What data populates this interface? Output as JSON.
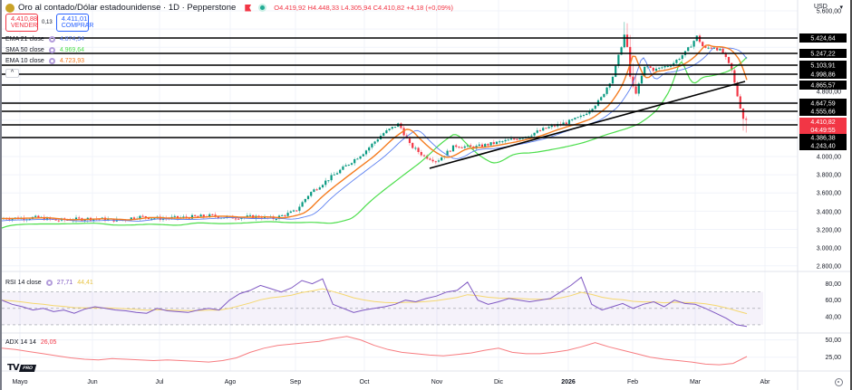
{
  "header": {
    "symbol_title": "Oro al contado/Dólar estadounidense · 1D · Pepperstone",
    "ohlc": {
      "open_label": "O",
      "open": "4.419,92",
      "high_label": "H",
      "high": "4.448,33",
      "low_label": "L",
      "low": "4.305,94",
      "close_label": "C",
      "close": "4.410,82",
      "change": "+4,18 (+0,09%)"
    }
  },
  "trade": {
    "sell_price": "4.410,88",
    "sell_label": "VENDER",
    "spread": "0,13",
    "buy_price": "4.411,01",
    "buy_label": "COMPRAR"
  },
  "indicators": [
    {
      "label": "EMA 21 close",
      "value": "4.874,34",
      "color": "#5b7ff0"
    },
    {
      "label": "SMA 50 close",
      "value": "4.969,64",
      "color": "#4cde4c"
    },
    {
      "label": "EMA 10 close",
      "value": "4.723,93",
      "color": "#f57c1f"
    }
  ],
  "collapse_glyph": "^",
  "currency": {
    "label": "USD",
    "glyph": "▾"
  },
  "price_axis": {
    "ticks": [
      "5.600,00",
      "4.800,00",
      "4.000,00",
      "3.800,00",
      "3.600,00",
      "3.400,00",
      "3.200,00",
      "3.000,00",
      "2.800,00"
    ],
    "level_labels": [
      "5.424,64",
      "5.247,22",
      "5.103,91",
      "4.998,86",
      "4.865,57",
      "4.647,59",
      "4.555,66",
      "4.386,38",
      "4.243,40"
    ],
    "current_price": "4.410,82",
    "countdown": "04:49:55"
  },
  "rsi": {
    "label": "RSI 14 close",
    "value": "27,71",
    "ma_value": "44,41",
    "ticks": [
      "80,00",
      "60,00",
      "40,00"
    ]
  },
  "adx": {
    "label": "ADX 14 14",
    "value": "26,05",
    "ticks": [
      "50,00",
      "25,00"
    ]
  },
  "time_axis": [
    "Mayo",
    "Jun",
    "Jul",
    "Ago",
    "Sep",
    "Oct",
    "Nov",
    "Dic",
    "2026",
    "Feb",
    "Mar",
    "Abr"
  ],
  "logo": {
    "tv": "TV",
    "pro": "PRO"
  },
  "colors": {
    "up": "#089981",
    "down": "#f23645",
    "ema21": "#5b7ff0",
    "sma50": "#4cde4c",
    "ema10": "#f57c1f",
    "rsi": "#7e57c2",
    "rsi_ma": "#f5d76e",
    "adx": "#f77c80",
    "level": "#000000"
  },
  "chart_data": [
    {
      "type": "candlestick",
      "title": "Oro al contado/Dólar estadounidense · 1D · Pepperstone",
      "ylim": [
        2700,
        5650
      ],
      "x_ticks": [
        "Mayo",
        "Jun",
        "Jul",
        "Ago",
        "Sep",
        "Oct",
        "Nov",
        "Dic",
        "2026",
        "Feb",
        "Mar",
        "Abr"
      ],
      "approx_close_path": [
        {
          "x": "Mayo",
          "y": 3300
        },
        {
          "x": "Jun",
          "y": 3320
        },
        {
          "x": "Jul",
          "y": 3340
        },
        {
          "x": "Ago",
          "y": 3350
        },
        {
          "x": "Sep",
          "y": 3500
        },
        {
          "x": "Oct",
          "y": 3950
        },
        {
          "x": "Oct-mid",
          "y": 4350
        },
        {
          "x": "Nov",
          "y": 4000
        },
        {
          "x": "Dic",
          "y": 4200
        },
        {
          "x": "2026",
          "y": 4400
        },
        {
          "x": "Jan-end",
          "y": 5400
        },
        {
          "x": "Feb",
          "y": 4950
        },
        {
          "x": "Mar",
          "y": 5250
        },
        {
          "x": "Mar-mid",
          "y": 5100
        },
        {
          "x": "last",
          "y": 4410.82
        }
      ],
      "horizontal_levels": [
        5424.64,
        5247.22,
        5103.91,
        4998.86,
        4865.57,
        4647.59,
        4555.66,
        4386.38,
        4243.4
      ],
      "trendlines": [
        {
          "from": {
            "x": "Nov",
            "y": 3880
          },
          "to": {
            "x": "Mar-mid",
            "y": 4890
          }
        }
      ],
      "series": [
        {
          "name": "EMA 21 close",
          "last": 4874.34
        },
        {
          "name": "SMA 50 close",
          "last": 4969.64
        },
        {
          "name": "EMA 10 close",
          "last": 4723.93
        }
      ],
      "last_price": 4410.82
    },
    {
      "type": "line",
      "title": "RSI 14 close",
      "ylim": [
        20,
        95
      ],
      "bands": [
        30,
        50,
        70
      ],
      "series": [
        {
          "name": "RSI",
          "last": 27.71,
          "values": [
            60,
            55,
            52,
            48,
            50,
            46,
            48,
            44,
            49,
            52,
            50,
            48,
            47,
            45,
            44,
            50,
            47,
            46,
            45,
            48,
            50,
            48,
            60,
            68,
            72,
            78,
            74,
            70,
            75,
            84,
            80,
            86,
            55,
            50,
            45,
            48,
            50,
            52,
            55,
            60,
            58,
            62,
            65,
            70,
            72,
            82,
            60,
            55,
            58,
            62,
            60,
            58,
            60,
            62,
            70,
            78,
            88,
            55,
            48,
            52,
            56,
            50,
            55,
            58,
            52,
            60,
            56,
            55,
            50,
            44,
            38,
            30,
            28
          ]
        },
        {
          "name": "RSI MA",
          "last": 44.41
        }
      ]
    },
    {
      "type": "line",
      "title": "ADX 14 14",
      "ylim": [
        5,
        60
      ],
      "series": [
        {
          "name": "ADX",
          "last": 26.05,
          "values": [
            38,
            36,
            33,
            30,
            27,
            24,
            22,
            21,
            23,
            22,
            21,
            20,
            21,
            20,
            19,
            18,
            20,
            24,
            32,
            38,
            42,
            44,
            46,
            48,
            52,
            55,
            50,
            42,
            36,
            32,
            30,
            28,
            27,
            29,
            31,
            35,
            38,
            32,
            30,
            30,
            32,
            35,
            40,
            46,
            40,
            35,
            30,
            25,
            22,
            20,
            18,
            15,
            14,
            16,
            26
          ]
        }
      ]
    }
  ]
}
